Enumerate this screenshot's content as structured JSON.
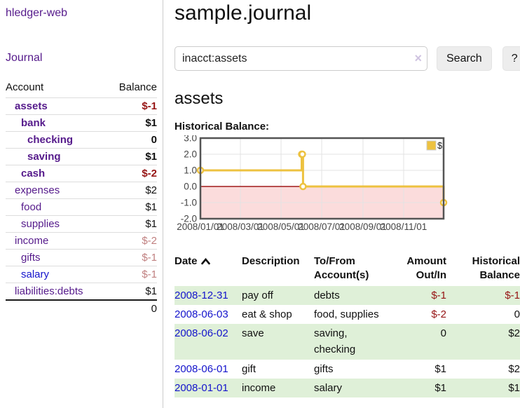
{
  "app": {
    "title": "hledger-web"
  },
  "sidebar": {
    "journal_link": "Journal",
    "headers": {
      "account": "Account",
      "balance": "Balance"
    },
    "accounts": [
      {
        "name": "assets",
        "depth": 1,
        "balance": "$-1",
        "bold": true,
        "negative": "strong"
      },
      {
        "name": "bank",
        "depth": 2,
        "balance": "$1",
        "bold": true,
        "negative": "none"
      },
      {
        "name": "checking",
        "depth": 3,
        "balance": "0",
        "bold": true,
        "negative": "none"
      },
      {
        "name": "saving",
        "depth": 3,
        "balance": "$1",
        "bold": true,
        "negative": "none"
      },
      {
        "name": "cash",
        "depth": 2,
        "balance": "$-2",
        "bold": true,
        "negative": "strong"
      },
      {
        "name": "expenses",
        "depth": 1,
        "balance": "$2",
        "bold": false,
        "negative": "none"
      },
      {
        "name": "food",
        "depth": 2,
        "balance": "$1",
        "bold": false,
        "negative": "none"
      },
      {
        "name": "supplies",
        "depth": 2,
        "balance": "$1",
        "bold": false,
        "negative": "none"
      },
      {
        "name": "income",
        "depth": 1,
        "balance": "$-2",
        "bold": false,
        "negative": "soft"
      },
      {
        "name": "gifts",
        "depth": 2,
        "balance": "$-1",
        "bold": false,
        "negative": "soft"
      },
      {
        "name": "salary",
        "depth": 2,
        "balance": "$-1",
        "bold": false,
        "negative": "soft",
        "link_style": "unvisited"
      },
      {
        "name": "liabilities:debts",
        "depth": 1,
        "balance": "$1",
        "bold": false,
        "negative": "none"
      }
    ],
    "total": "0"
  },
  "header": {
    "title": "sample.journal"
  },
  "search": {
    "value": "inacct:assets",
    "clear_icon": "×",
    "button": "Search",
    "help_button": "?"
  },
  "register": {
    "heading": "assets",
    "chart_label": "Historical Balance:",
    "table_headers": {
      "date": "Date",
      "description": "Description",
      "accounts": "To/From Account(s)",
      "amount": "Amount Out/In",
      "balance": "Historical Balance"
    },
    "rows": [
      {
        "date": "2008-12-31",
        "description": "pay off",
        "accounts": "debts",
        "amount": "$-1",
        "amount_negative": true,
        "balance": "$-1",
        "balance_negative": true
      },
      {
        "date": "2008-06-03",
        "description": "eat & shop",
        "accounts": "food, supplies",
        "amount": "$-2",
        "amount_negative": true,
        "balance": "0",
        "balance_negative": false
      },
      {
        "date": "2008-06-02",
        "description": "save",
        "accounts": "saving, checking",
        "amount": "0",
        "amount_negative": false,
        "balance": "$2",
        "balance_negative": false
      },
      {
        "date": "2008-06-01",
        "description": "gift",
        "accounts": "gifts",
        "amount": "$1",
        "amount_negative": false,
        "balance": "$2",
        "balance_negative": false
      },
      {
        "date": "2008-01-01",
        "description": "income",
        "accounts": "salary",
        "amount": "$1",
        "amount_negative": false,
        "balance": "$1",
        "balance_negative": false
      }
    ]
  },
  "chart_data": {
    "type": "line",
    "title": "Historical Balance",
    "step": true,
    "series": [
      {
        "name": "$",
        "points": [
          {
            "x": "2008-01-01",
            "y": 1
          },
          {
            "x": "2008-06-01",
            "y": 2
          },
          {
            "x": "2008-06-02",
            "y": 2
          },
          {
            "x": "2008-06-03",
            "y": 0
          },
          {
            "x": "2008-12-31",
            "y": -1
          }
        ]
      }
    ],
    "xrange": [
      "2008-01-01",
      "2008-12-31"
    ],
    "ylim": [
      -2,
      3
    ],
    "yticks": {
      "values": [
        3,
        2,
        1,
        0,
        -1,
        -2
      ],
      "labels": [
        "3.0",
        "2.0",
        "1.0",
        "0.0",
        "-1.0",
        "-2.0"
      ]
    },
    "xticks": {
      "dates": [
        "2008-01-01",
        "2008-03-01",
        "2008-05-01",
        "2008-07-01",
        "2008-09-01",
        "2008-11-01"
      ],
      "labels": [
        "2008/01/01",
        "2008/03/01",
        "2008/05/01",
        "2008/07/01",
        "2008/09/01",
        "2008/11/01"
      ]
    },
    "legend": {
      "position": "top-right",
      "entries": [
        "$"
      ]
    },
    "grid": true,
    "colors": {
      "line": "#edc240",
      "marker_fill": "#ffffff",
      "negative_region": "#fbdcdc",
      "zero_line": "#a01818",
      "gridline": "#e3e3e3",
      "border": "#545454",
      "tick_text": "#444444"
    }
  }
}
